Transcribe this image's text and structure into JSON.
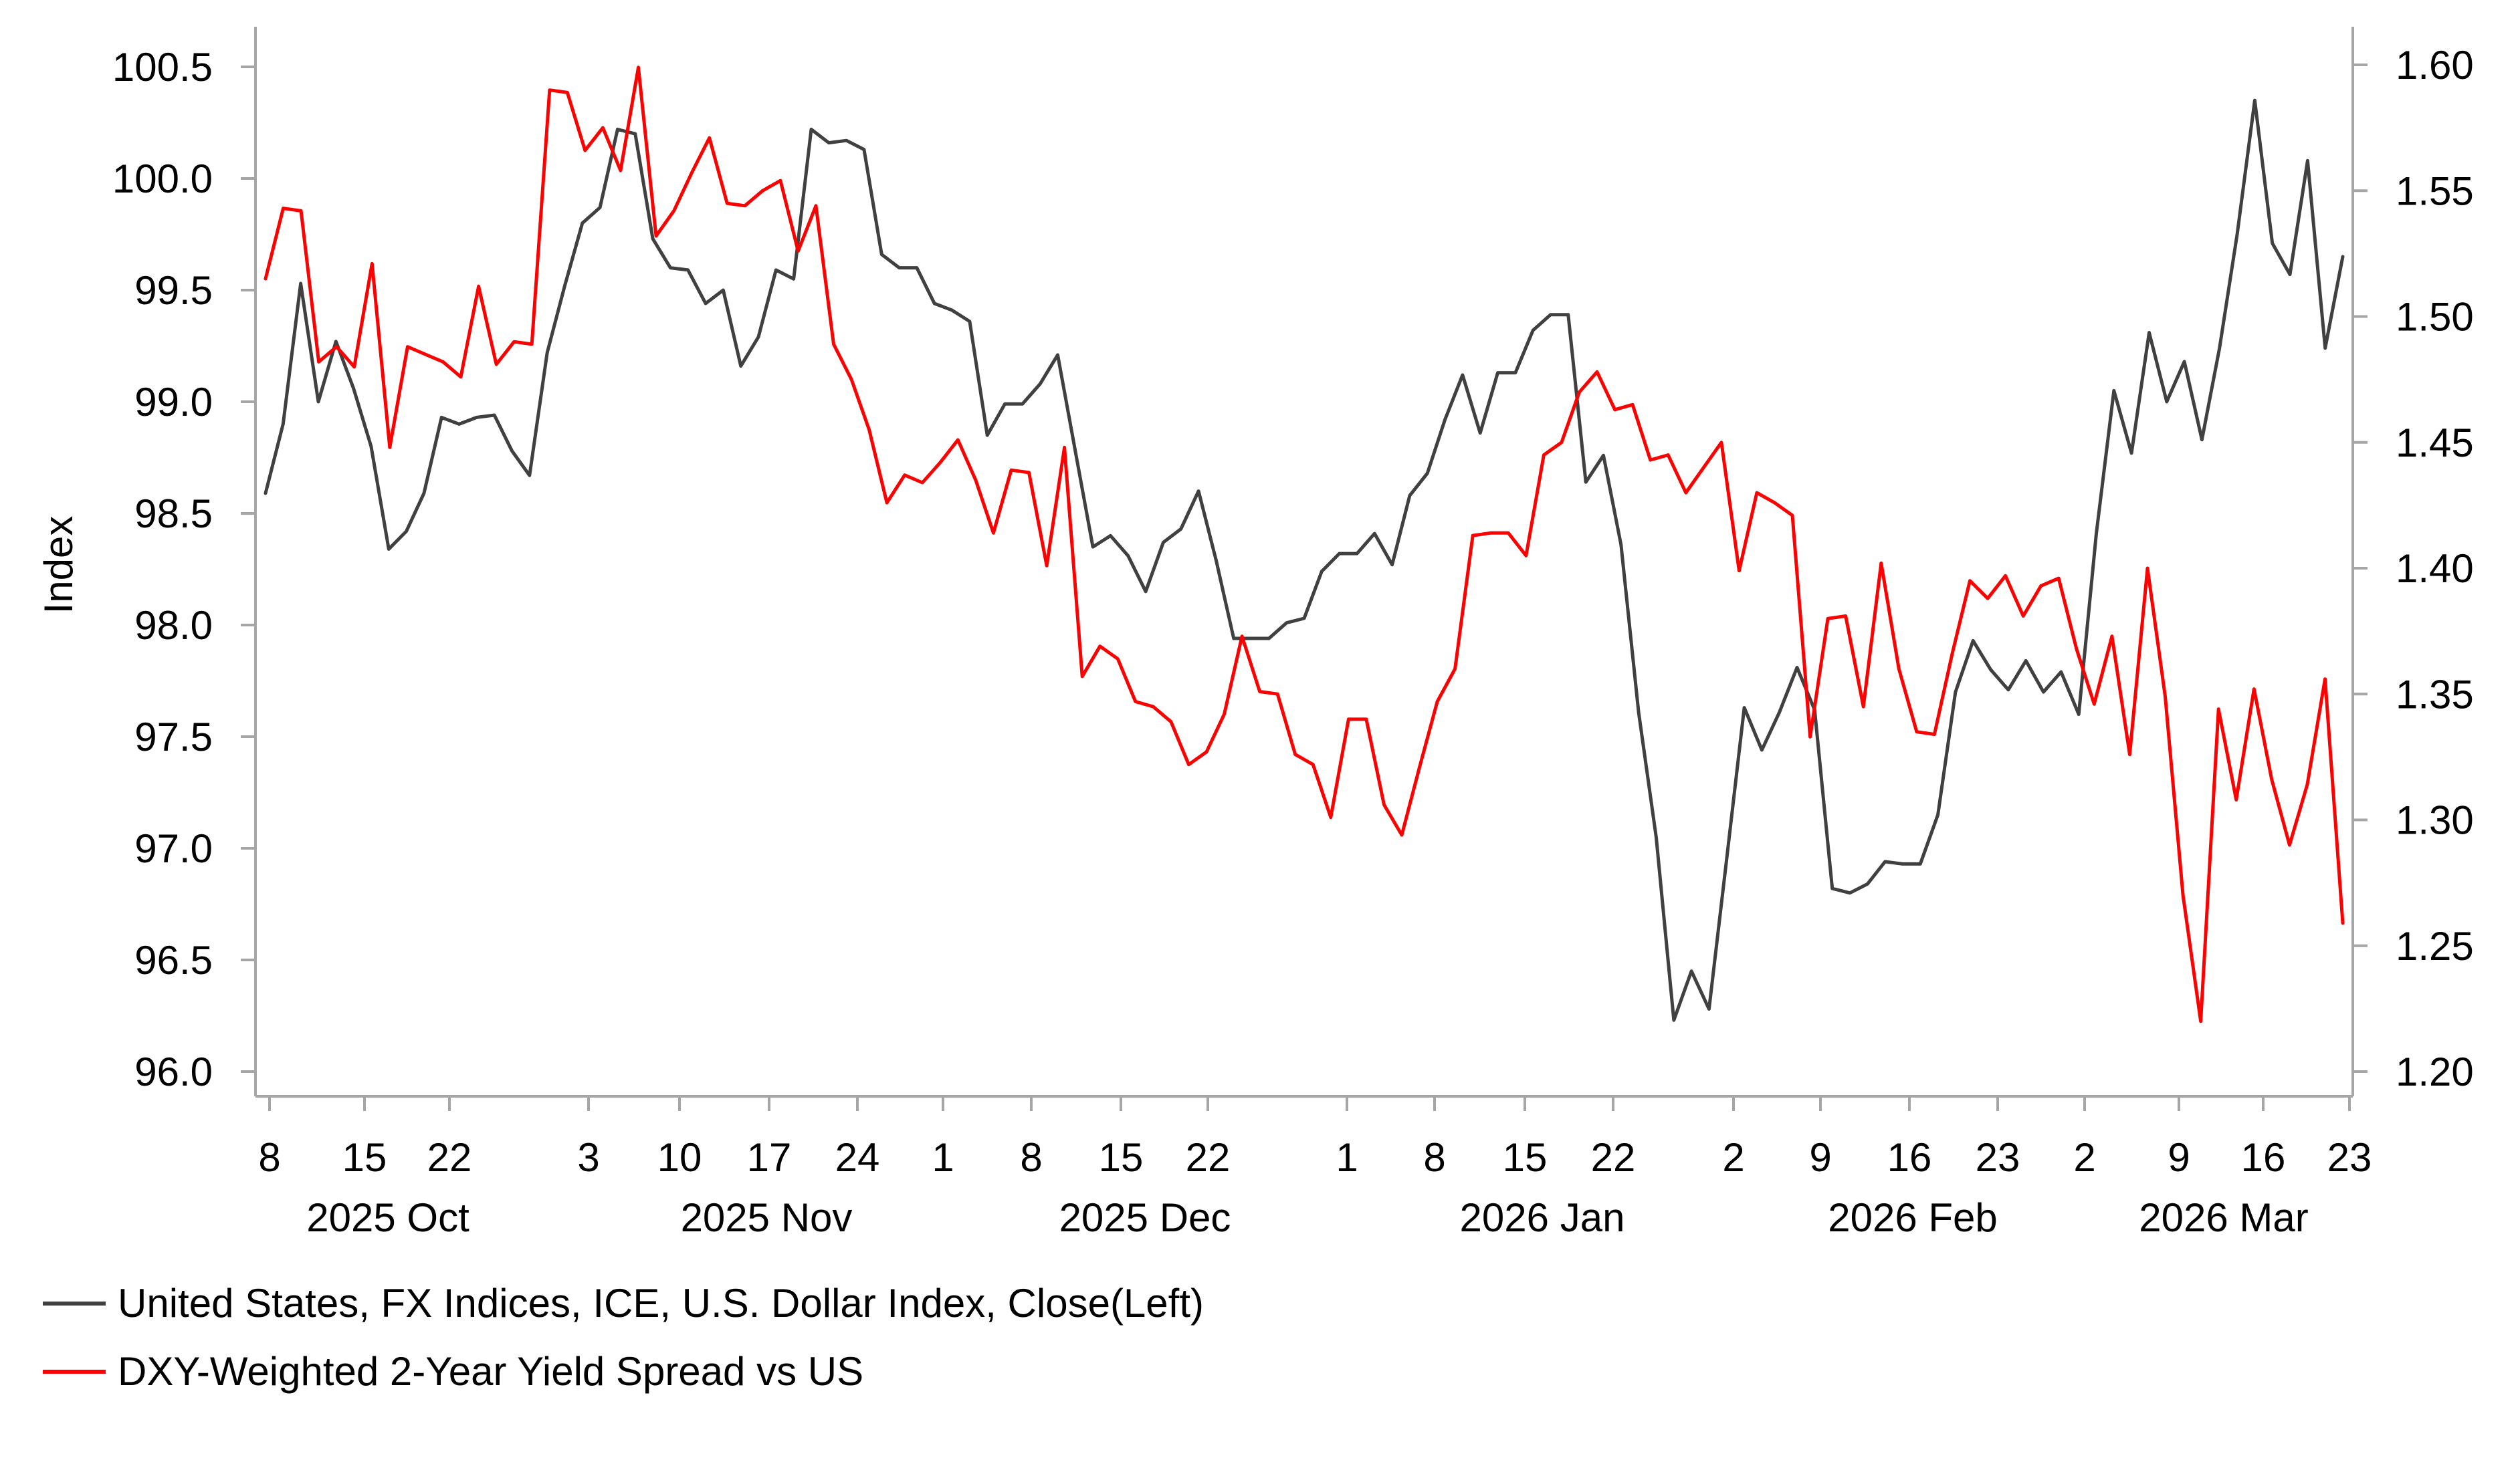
{
  "chart_data": {
    "type": "line",
    "title": "",
    "ylabel_left": "Index",
    "ylim_left": [
      95.9,
      100.65
    ],
    "yticks_left": [
      "96.0",
      "96.5",
      "97.0",
      "97.5",
      "98.0",
      "98.5",
      "99.0",
      "99.5",
      "100.0",
      "100.5"
    ],
    "ylim_right": [
      1.19,
      1.615
    ],
    "yticks_right": [
      "1.20",
      "1.25",
      "1.30",
      "1.35",
      "1.40",
      "1.45",
      "1.50",
      "1.55",
      "1.60"
    ],
    "day_ticks": [
      "8",
      "15",
      "22",
      "3",
      "10",
      "17",
      "24",
      "1",
      "8",
      "15",
      "22",
      "1",
      "8",
      "15",
      "22",
      "2",
      "9",
      "16",
      "23",
      "2",
      "9",
      "16",
      "23"
    ],
    "month_labels": [
      "2025 Oct",
      "2025 Nov",
      "2025 Dec",
      "2026 Jan",
      "2026 Feb",
      "2026 Mar"
    ],
    "legend": [
      {
        "label": "United States, FX Indices, ICE, U.S. Dollar Index, Close(Left)",
        "color": "#404040"
      },
      {
        "label": "DXY-Weighted 2-Year Yield Spread vs US",
        "color": "#ff0000"
      }
    ],
    "series": [
      {
        "name": "United States, FX Indices, ICE, U.S. Dollar Index, Close(Left)",
        "axis": "left",
        "color": "#404040",
        "values": [
          98.59,
          98.9,
          99.53,
          99.0,
          99.27,
          99.06,
          98.8,
          98.34,
          98.42,
          98.59,
          98.93,
          98.9,
          98.93,
          98.94,
          98.78,
          98.67,
          99.22,
          99.52,
          99.8,
          99.87,
          100.22,
          100.2,
          99.73,
          99.6,
          99.59,
          99.44,
          99.5,
          99.16,
          99.29,
          99.59,
          99.55,
          100.22,
          100.16,
          100.17,
          100.13,
          99.66,
          99.6,
          99.6,
          99.44,
          99.41,
          99.36,
          98.85,
          98.99,
          98.99,
          99.08,
          99.21,
          98.78,
          98.35,
          98.4,
          98.31,
          98.15,
          98.37,
          98.43,
          98.6,
          98.29,
          97.94,
          97.94,
          97.94,
          98.01,
          98.03,
          98.24,
          98.32,
          98.32,
          98.41,
          98.27,
          98.58,
          98.68,
          98.92,
          99.12,
          98.86,
          99.13,
          99.13,
          99.32,
          99.39,
          99.39,
          98.64,
          98.76,
          98.36,
          97.61,
          97.05,
          96.23,
          96.45,
          96.28,
          96.95,
          97.63,
          97.44,
          97.61,
          97.81,
          97.62,
          96.82,
          96.8,
          96.84,
          96.94,
          96.93,
          96.93,
          97.15,
          97.7,
          97.93,
          97.8,
          97.71,
          97.84,
          97.7,
          97.79,
          97.6,
          98.41,
          99.05,
          98.77,
          99.31,
          99.0,
          99.18,
          98.83,
          99.24,
          99.75,
          100.35,
          99.71,
          99.57,
          100.08,
          99.24,
          99.65
        ]
      },
      {
        "name": "DXY-Weighted 2-Year Yield Spread vs US",
        "axis": "right",
        "color": "#ff0000",
        "values": [
          1.515,
          1.543,
          1.542,
          1.482,
          1.488,
          1.48,
          1.521,
          1.448,
          1.488,
          1.485,
          1.482,
          1.476,
          1.512,
          1.481,
          1.49,
          1.489,
          1.59,
          1.589,
          1.566,
          1.575,
          1.558,
          1.599,
          1.532,
          1.542,
          1.557,
          1.571,
          1.545,
          1.544,
          1.55,
          1.554,
          1.526,
          1.544,
          1.489,
          1.475,
          1.455,
          1.426,
          1.437,
          1.434,
          1.442,
          1.451,
          1.435,
          1.414,
          1.439,
          1.438,
          1.401,
          1.448,
          1.357,
          1.369,
          1.364,
          1.347,
          1.345,
          1.339,
          1.322,
          1.327,
          1.342,
          1.373,
          1.351,
          1.35,
          1.326,
          1.322,
          1.301,
          1.34,
          1.34,
          1.306,
          1.294,
          1.321,
          1.347,
          1.36,
          1.413,
          1.414,
          1.414,
          1.405,
          1.445,
          1.45,
          1.47,
          1.478,
          1.463,
          1.465,
          1.443,
          1.445,
          1.43,
          1.44,
          1.45,
          1.399,
          1.43,
          1.426,
          1.421,
          1.333,
          1.38,
          1.381,
          1.345,
          1.402,
          1.36,
          1.335,
          1.334,
          1.366,
          1.395,
          1.388,
          1.397,
          1.381,
          1.393,
          1.396,
          1.368,
          1.346,
          1.373,
          1.326,
          1.4,
          1.349,
          1.27,
          1.22,
          1.344,
          1.308,
          1.352,
          1.316,
          1.29,
          1.314,
          1.356,
          1.259
        ]
      }
    ]
  }
}
